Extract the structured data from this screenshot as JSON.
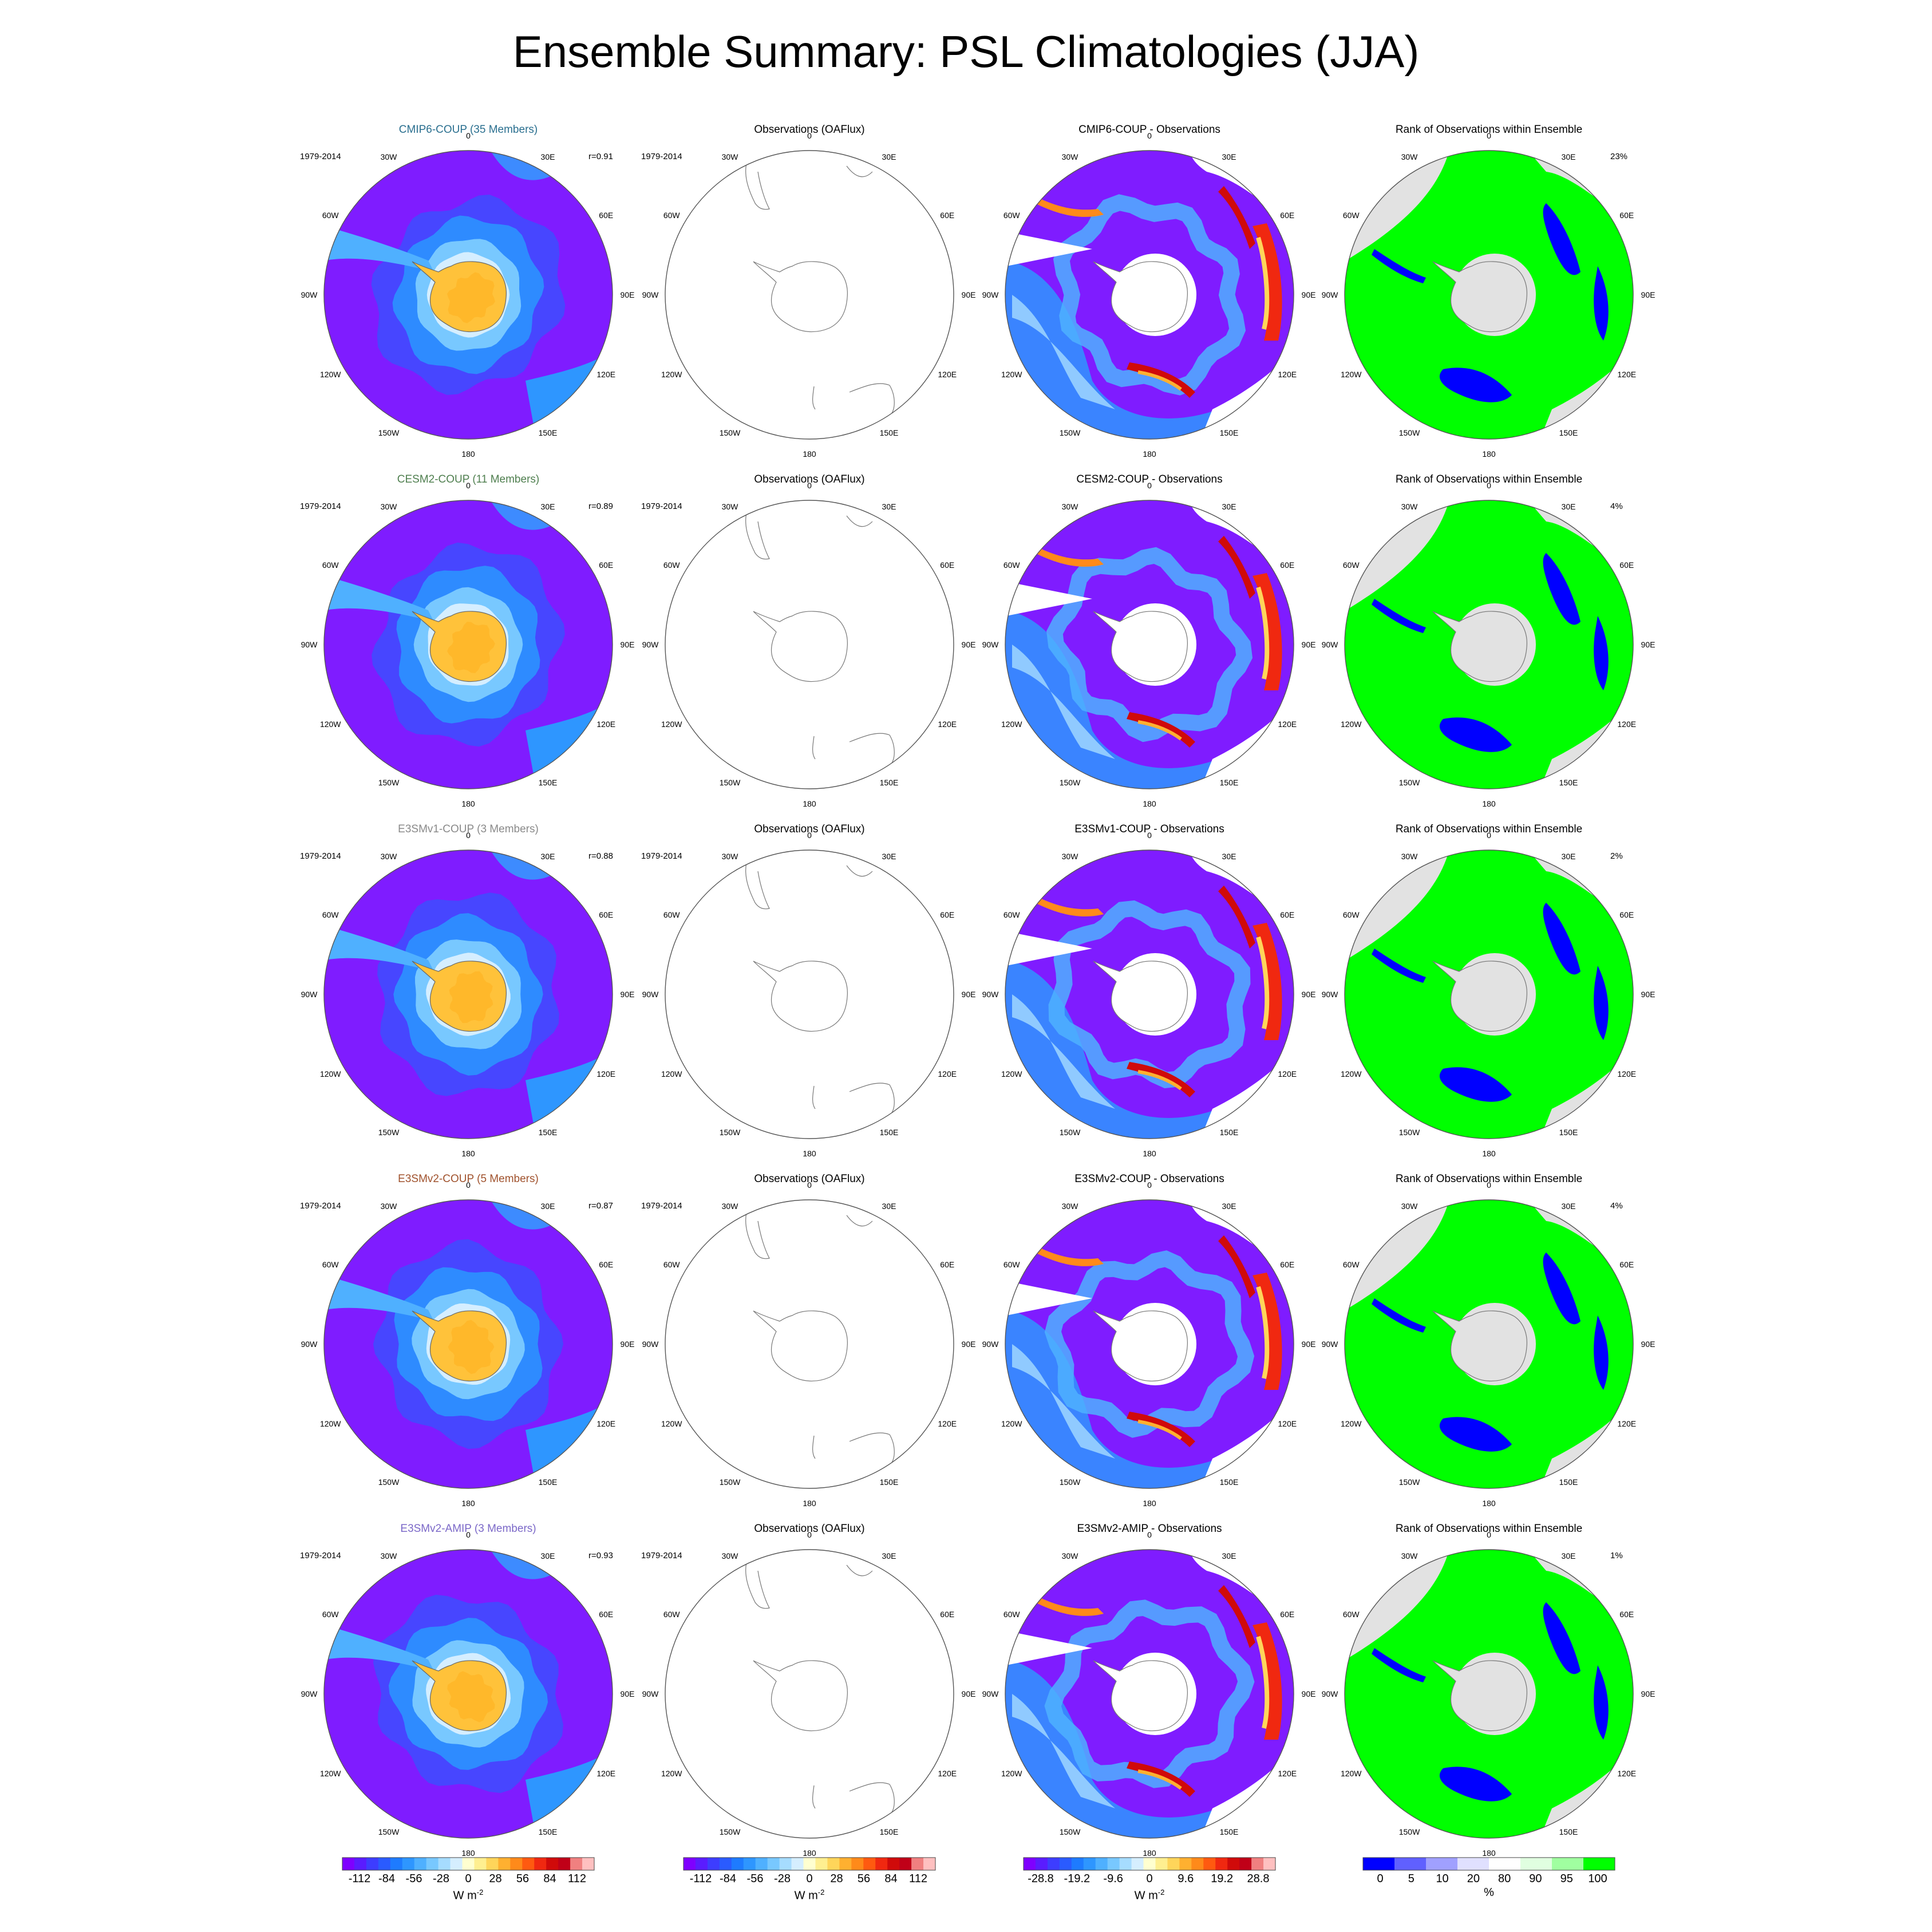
{
  "title": "Ensemble Summary: PSL Climatologies (JJA)",
  "period": "1979-2014",
  "lon_labels": [
    "0",
    "30E",
    "60E",
    "90E",
    "120E",
    "150E",
    "180",
    "150W",
    "120W",
    "90W",
    "60W",
    "30W"
  ],
  "column_titles": {
    "observations": "Observations (OAFlux)",
    "rank": "Rank of Observations within Ensemble"
  },
  "rows": [
    {
      "ensemble": "CMIP6-COUP (35 Members)",
      "ensemble_color": "#2a6f8f",
      "correlation": "r=0.91",
      "diff_title": "CMIP6-COUP - Observations",
      "rank_pct": "23%"
    },
    {
      "ensemble": "CESM2-COUP (11 Members)",
      "ensemble_color": "#4f7f4f",
      "correlation": "r=0.89",
      "diff_title": "CESM2-COUP - Observations",
      "rank_pct": "4%"
    },
    {
      "ensemble": "E3SMv1-COUP (3 Members)",
      "ensemble_color": "#8a8a8a",
      "correlation": "r=0.88",
      "diff_title": "E3SMv1-COUP - Observations",
      "rank_pct": "2%"
    },
    {
      "ensemble": "E3SMv2-COUP (5 Members)",
      "ensemble_color": "#a0522d",
      "correlation": "r=0.87",
      "diff_title": "E3SMv2-COUP - Observations",
      "rank_pct": "4%"
    },
    {
      "ensemble": "E3SMv2-AMIP (3 Members)",
      "ensemble_color": "#7b68c8",
      "correlation": "r=0.93",
      "diff_title": "E3SMv2-AMIP - Observations",
      "rank_pct": "1%"
    }
  ],
  "colorbars": [
    {
      "ticks": [
        "-112",
        "-84",
        "-56",
        "-28",
        "0",
        "28",
        "56",
        "84",
        "112"
      ],
      "unit": "W m",
      "unit_sup": "-2",
      "colors": [
        "#7f00ff",
        "#5a1cff",
        "#3d3dff",
        "#2a5bff",
        "#1e7bff",
        "#2e96ff",
        "#4fb0ff",
        "#78c8ff",
        "#a6dcff",
        "#d5eeff",
        "#ffffd0",
        "#ffef90",
        "#ffd55a",
        "#ffb030",
        "#ff8a1a",
        "#ff5a10",
        "#f02810",
        "#d00a0a",
        "#c00018",
        "#f08080",
        "#ffc0c0"
      ]
    },
    {
      "ticks": [
        "-112",
        "-84",
        "-56",
        "-28",
        "0",
        "28",
        "56",
        "84",
        "112"
      ],
      "unit": "W m",
      "unit_sup": "-2",
      "colors": [
        "#7f00ff",
        "#5a1cff",
        "#3d3dff",
        "#2a5bff",
        "#1e7bff",
        "#2e96ff",
        "#4fb0ff",
        "#78c8ff",
        "#a6dcff",
        "#d5eeff",
        "#ffffd0",
        "#ffef90",
        "#ffd55a",
        "#ffb030",
        "#ff8a1a",
        "#ff5a10",
        "#f02810",
        "#d00a0a",
        "#c00018",
        "#f08080",
        "#ffc0c0"
      ]
    },
    {
      "ticks": [
        "-28.8",
        "-19.2",
        "-9.6",
        "0",
        "9.6",
        "19.2",
        "28.8"
      ],
      "unit": "W m",
      "unit_sup": "-2",
      "colors": [
        "#7f00ff",
        "#5a1cff",
        "#3d3dff",
        "#2a5bff",
        "#1e7bff",
        "#2e96ff",
        "#4fb0ff",
        "#78c8ff",
        "#a6dcff",
        "#d5eeff",
        "#ffffd0",
        "#ffef90",
        "#ffd55a",
        "#ffb030",
        "#ff8a1a",
        "#ff5a10",
        "#f02810",
        "#d00a0a",
        "#c00018",
        "#f08080",
        "#ffc0c0"
      ]
    },
    {
      "ticks": [
        "0",
        "5",
        "10",
        "20",
        "80",
        "90",
        "95",
        "100"
      ],
      "unit": "%",
      "unit_sup": "",
      "colors": [
        "#0000ff",
        "#6060ff",
        "#a0a0ff",
        "#e0e0ff",
        "#ffffff",
        "#e0ffe0",
        "#a0ffa0",
        "#00ff00"
      ]
    }
  ],
  "chart_data": {
    "type": "heatmap",
    "title": "Ensemble Summary: PSL Climatologies (JJA)",
    "projection": "south polar stereographic",
    "period": "1979-2014",
    "panels": [
      {
        "row": "CMIP6-COUP (35 Members)",
        "correlation": 0.91,
        "rank_percent_at_extreme": 23
      },
      {
        "row": "CESM2-COUP (11 Members)",
        "correlation": 0.89,
        "rank_percent_at_extreme": 4
      },
      {
        "row": "E3SMv1-COUP (3 Members)",
        "correlation": 0.88,
        "rank_percent_at_extreme": 2
      },
      {
        "row": "E3SMv2-COUP (5 Members)",
        "correlation": 0.87,
        "rank_percent_at_extreme": 4
      },
      {
        "row": "E3SMv2-AMIP (3 Members)",
        "correlation": 0.93,
        "rank_percent_at_extreme": 1
      }
    ],
    "colorbar_ranges": {
      "climatology": [
        -112,
        112
      ],
      "difference": [
        -28.8,
        28.8
      ],
      "rank": [
        0,
        100
      ]
    }
  }
}
